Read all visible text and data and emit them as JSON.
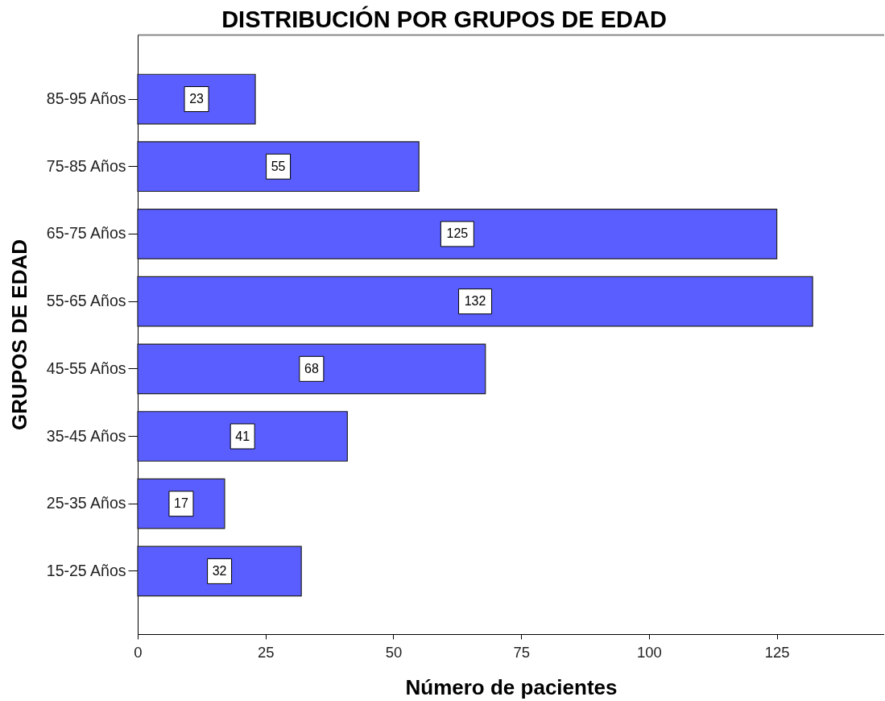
{
  "chart_data": {
    "type": "bar",
    "orientation": "horizontal",
    "title": "DISTRIBUCIÓN POR GRUPOS DE EDAD",
    "xlabel": "Número de pacientes",
    "ylabel": "GRUPOS DE EDAD",
    "categories": [
      "85-95 Años",
      "75-85 Años",
      "65-75 Años",
      "55-65 Años",
      "45-55 Años",
      "35-45 Años",
      "25-35 Años",
      "15-25 Años"
    ],
    "values": [
      23,
      55,
      125,
      132,
      68,
      41,
      17,
      32
    ],
    "color": "#5a5eff",
    "xlim": [
      0,
      146
    ],
    "xticks": [
      0,
      25,
      50,
      75,
      100,
      125
    ],
    "data_labels": true
  }
}
